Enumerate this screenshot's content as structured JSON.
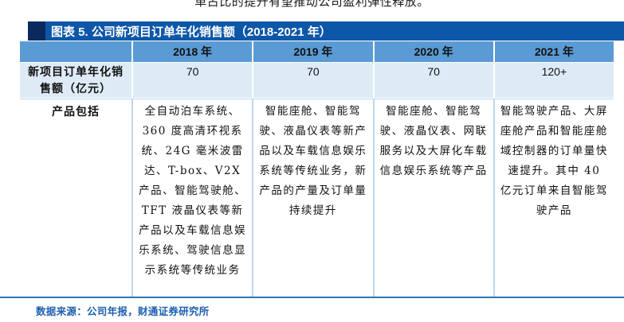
{
  "page": {
    "top_text": "单占比的提升有望推动公司盈利弹性释放。",
    "source_note": "数据来源：公司年报，财通证券研究所"
  },
  "table": {
    "title": "图表 5.  公司新项目订单年化销售额（2018-2021 年）",
    "columns": [
      "2018 年",
      "2019 年",
      "2020 年",
      "2021 年"
    ],
    "rows": [
      {
        "label": "新项目订单年化销售额（亿元）",
        "values": [
          "70",
          "70",
          "70",
          "120+"
        ]
      },
      {
        "label": "产品包括",
        "values": [
          "全自动泊车系统、360 度高清环视系统、24G 毫米波雷达、T-box、V2X 产品、智能驾驶舱、TFT 液晶仪表等新产品以及车载信息娱乐系统、驾驶信息显示系统等传统业务",
          "智能座舱、智能驾驶、液晶仪表等新产品以及车载信息娱乐系统等传统业务，新产品的产量及订单量持续提升",
          "智能座舱、智能驾驶、液晶仪表、网联服务以及大屏化车载信息娱乐系统等产品",
          "智能驾驶产品、大屏座舱产品和智能座舱域控制器的订单量快速提升。其中 40 亿元订单来自智能驾驶产品"
        ]
      }
    ]
  },
  "colors": {
    "title_bar": "#0d57a8",
    "title_accent": "#0a2a5e",
    "header_row": "#5b9bd5",
    "row_light": "#deebf7",
    "border_light": "#bdd7ee",
    "bottom_border": "#2e74b5",
    "source_text": "#1d5fb0"
  }
}
